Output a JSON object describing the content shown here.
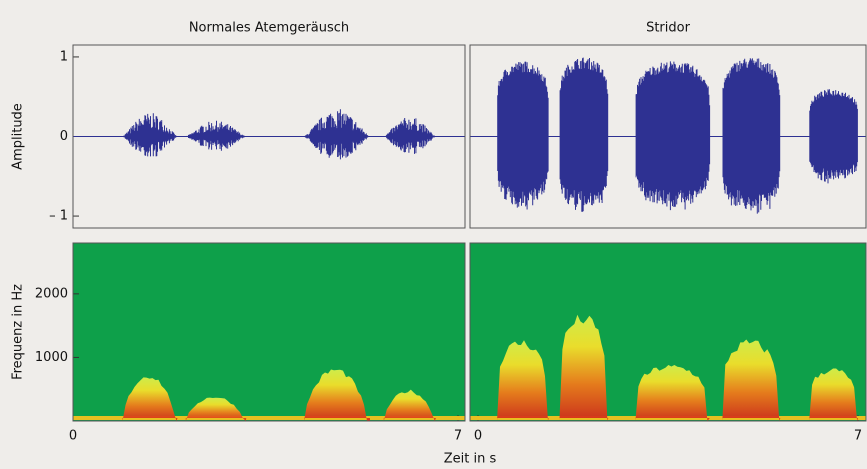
{
  "chart_data": [
    {
      "type": "waveform",
      "title": "Normales Atemgeräusch",
      "ylabel": "Amplitude",
      "color": "#2e3192",
      "xlim": [
        0,
        7
      ],
      "ylim": [
        -1.15,
        1.15
      ],
      "yticks": [
        {
          "value": -1,
          "label": "– 1"
        },
        0,
        1
      ],
      "bursts": [
        {
          "start": 0.9,
          "end": 1.9,
          "amplitude": 0.3
        },
        {
          "start": 2.05,
          "end": 3.15,
          "amplitude": 0.2
        },
        {
          "start": 4.2,
          "end": 5.4,
          "amplitude": 0.35
        },
        {
          "start": 5.65,
          "end": 6.6,
          "amplitude": 0.25
        }
      ]
    },
    {
      "type": "waveform",
      "title": "Stridor",
      "color": "#2e3192",
      "xlim": [
        0,
        7
      ],
      "ylim": [
        -1.15,
        1.15
      ],
      "bursts": [
        {
          "start": 0.35,
          "end": 1.3,
          "amplitude": 0.95
        },
        {
          "start": 1.5,
          "end": 2.4,
          "amplitude": 1.0
        },
        {
          "start": 2.9,
          "end": 4.27,
          "amplitude": 0.95
        },
        {
          "start": 4.5,
          "end": 5.57,
          "amplitude": 1.0
        },
        {
          "start": 6.1,
          "end": 7,
          "amplitude": 0.6
        }
      ]
    },
    {
      "type": "spectrogram",
      "ylabel": "Frequenz in Hz",
      "xlabel": "Zeit in s",
      "color": "#0ea04a",
      "xlim": [
        0,
        7
      ],
      "ylim": [
        0,
        2800
      ],
      "yticks": [
        1000,
        2000
      ],
      "xticks": [
        0,
        7
      ],
      "bursts": [
        {
          "start": 0.9,
          "end": 1.9,
          "frequency": 750
        },
        {
          "start": 2.05,
          "end": 3.15,
          "frequency": 400
        },
        {
          "start": 4.2,
          "end": 5.4,
          "frequency": 850
        },
        {
          "start": 5.65,
          "end": 6.6,
          "frequency": 500
        }
      ]
    },
    {
      "type": "spectrogram",
      "color": "#0ea04a",
      "xlim": [
        0,
        7
      ],
      "ylim": [
        0,
        2800
      ],
      "xticks": [
        0,
        7
      ],
      "bursts": [
        {
          "start": 0.35,
          "end": 1.3,
          "frequency": 1300
        },
        {
          "start": 1.5,
          "end": 2.4,
          "frequency": 1700
        },
        {
          "start": 2.9,
          "end": 4.27,
          "frequency": 900
        },
        {
          "start": 4.5,
          "end": 5.57,
          "frequency": 1300
        },
        {
          "start": 6.1,
          "end": 7,
          "frequency": 850
        }
      ]
    }
  ]
}
